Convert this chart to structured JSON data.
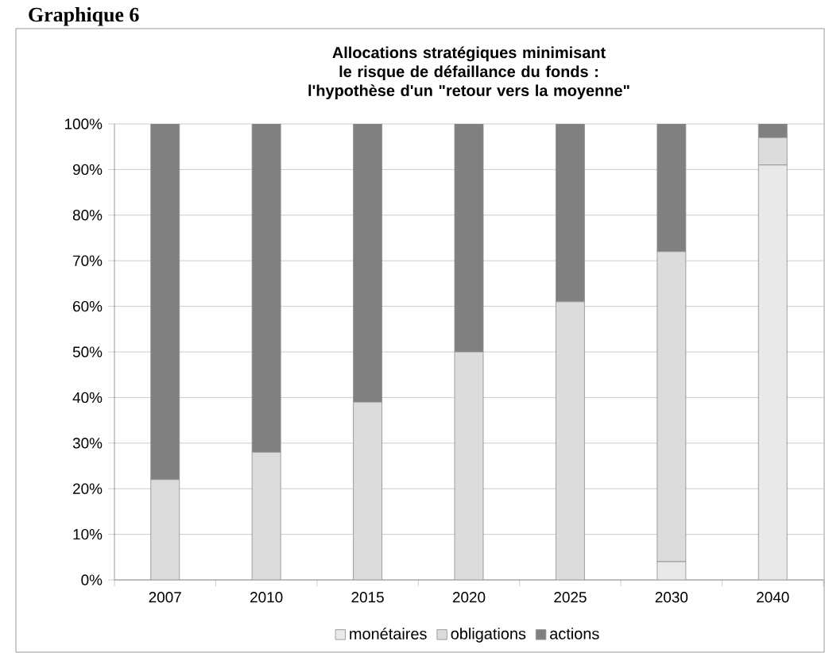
{
  "chart_data": {
    "type": "bar",
    "stacked": true,
    "title": "Allocations stratégiques minimisant le risque de défaillance du fonds : l'hypothèse d'un \"retour vers la moyenne\"",
    "annotations": [
      "Graphique 6"
    ],
    "categories": [
      "2007",
      "2010",
      "2015",
      "2020",
      "2025",
      "2030",
      "2040"
    ],
    "series": [
      {
        "name": "monétaires",
        "color": "#e9e9e9",
        "values": [
          0,
          0,
          0,
          0,
          0,
          4,
          91
        ]
      },
      {
        "name": "obligations",
        "color": "#dcdcdc",
        "values": [
          22,
          28,
          39,
          50,
          61,
          68,
          6
        ]
      },
      {
        "name": "actions",
        "color": "#808080",
        "values": [
          78,
          72,
          61,
          50,
          39,
          28,
          3
        ]
      }
    ],
    "ylim": [
      0,
      100
    ],
    "yticks": [
      {
        "value": 0,
        "label": "0%"
      },
      {
        "value": 10,
        "label": "10%"
      },
      {
        "value": 20,
        "label": "20%"
      },
      {
        "value": 30,
        "label": "30%"
      },
      {
        "value": 40,
        "label": "40%"
      },
      {
        "value": 50,
        "label": "50%"
      },
      {
        "value": 60,
        "label": "60%"
      },
      {
        "value": 70,
        "label": "70%"
      },
      {
        "value": 80,
        "label": "80%"
      },
      {
        "value": 90,
        "label": "90%"
      },
      {
        "value": 100,
        "label": "100%"
      }
    ],
    "grid": "y",
    "legend": "bottom"
  }
}
